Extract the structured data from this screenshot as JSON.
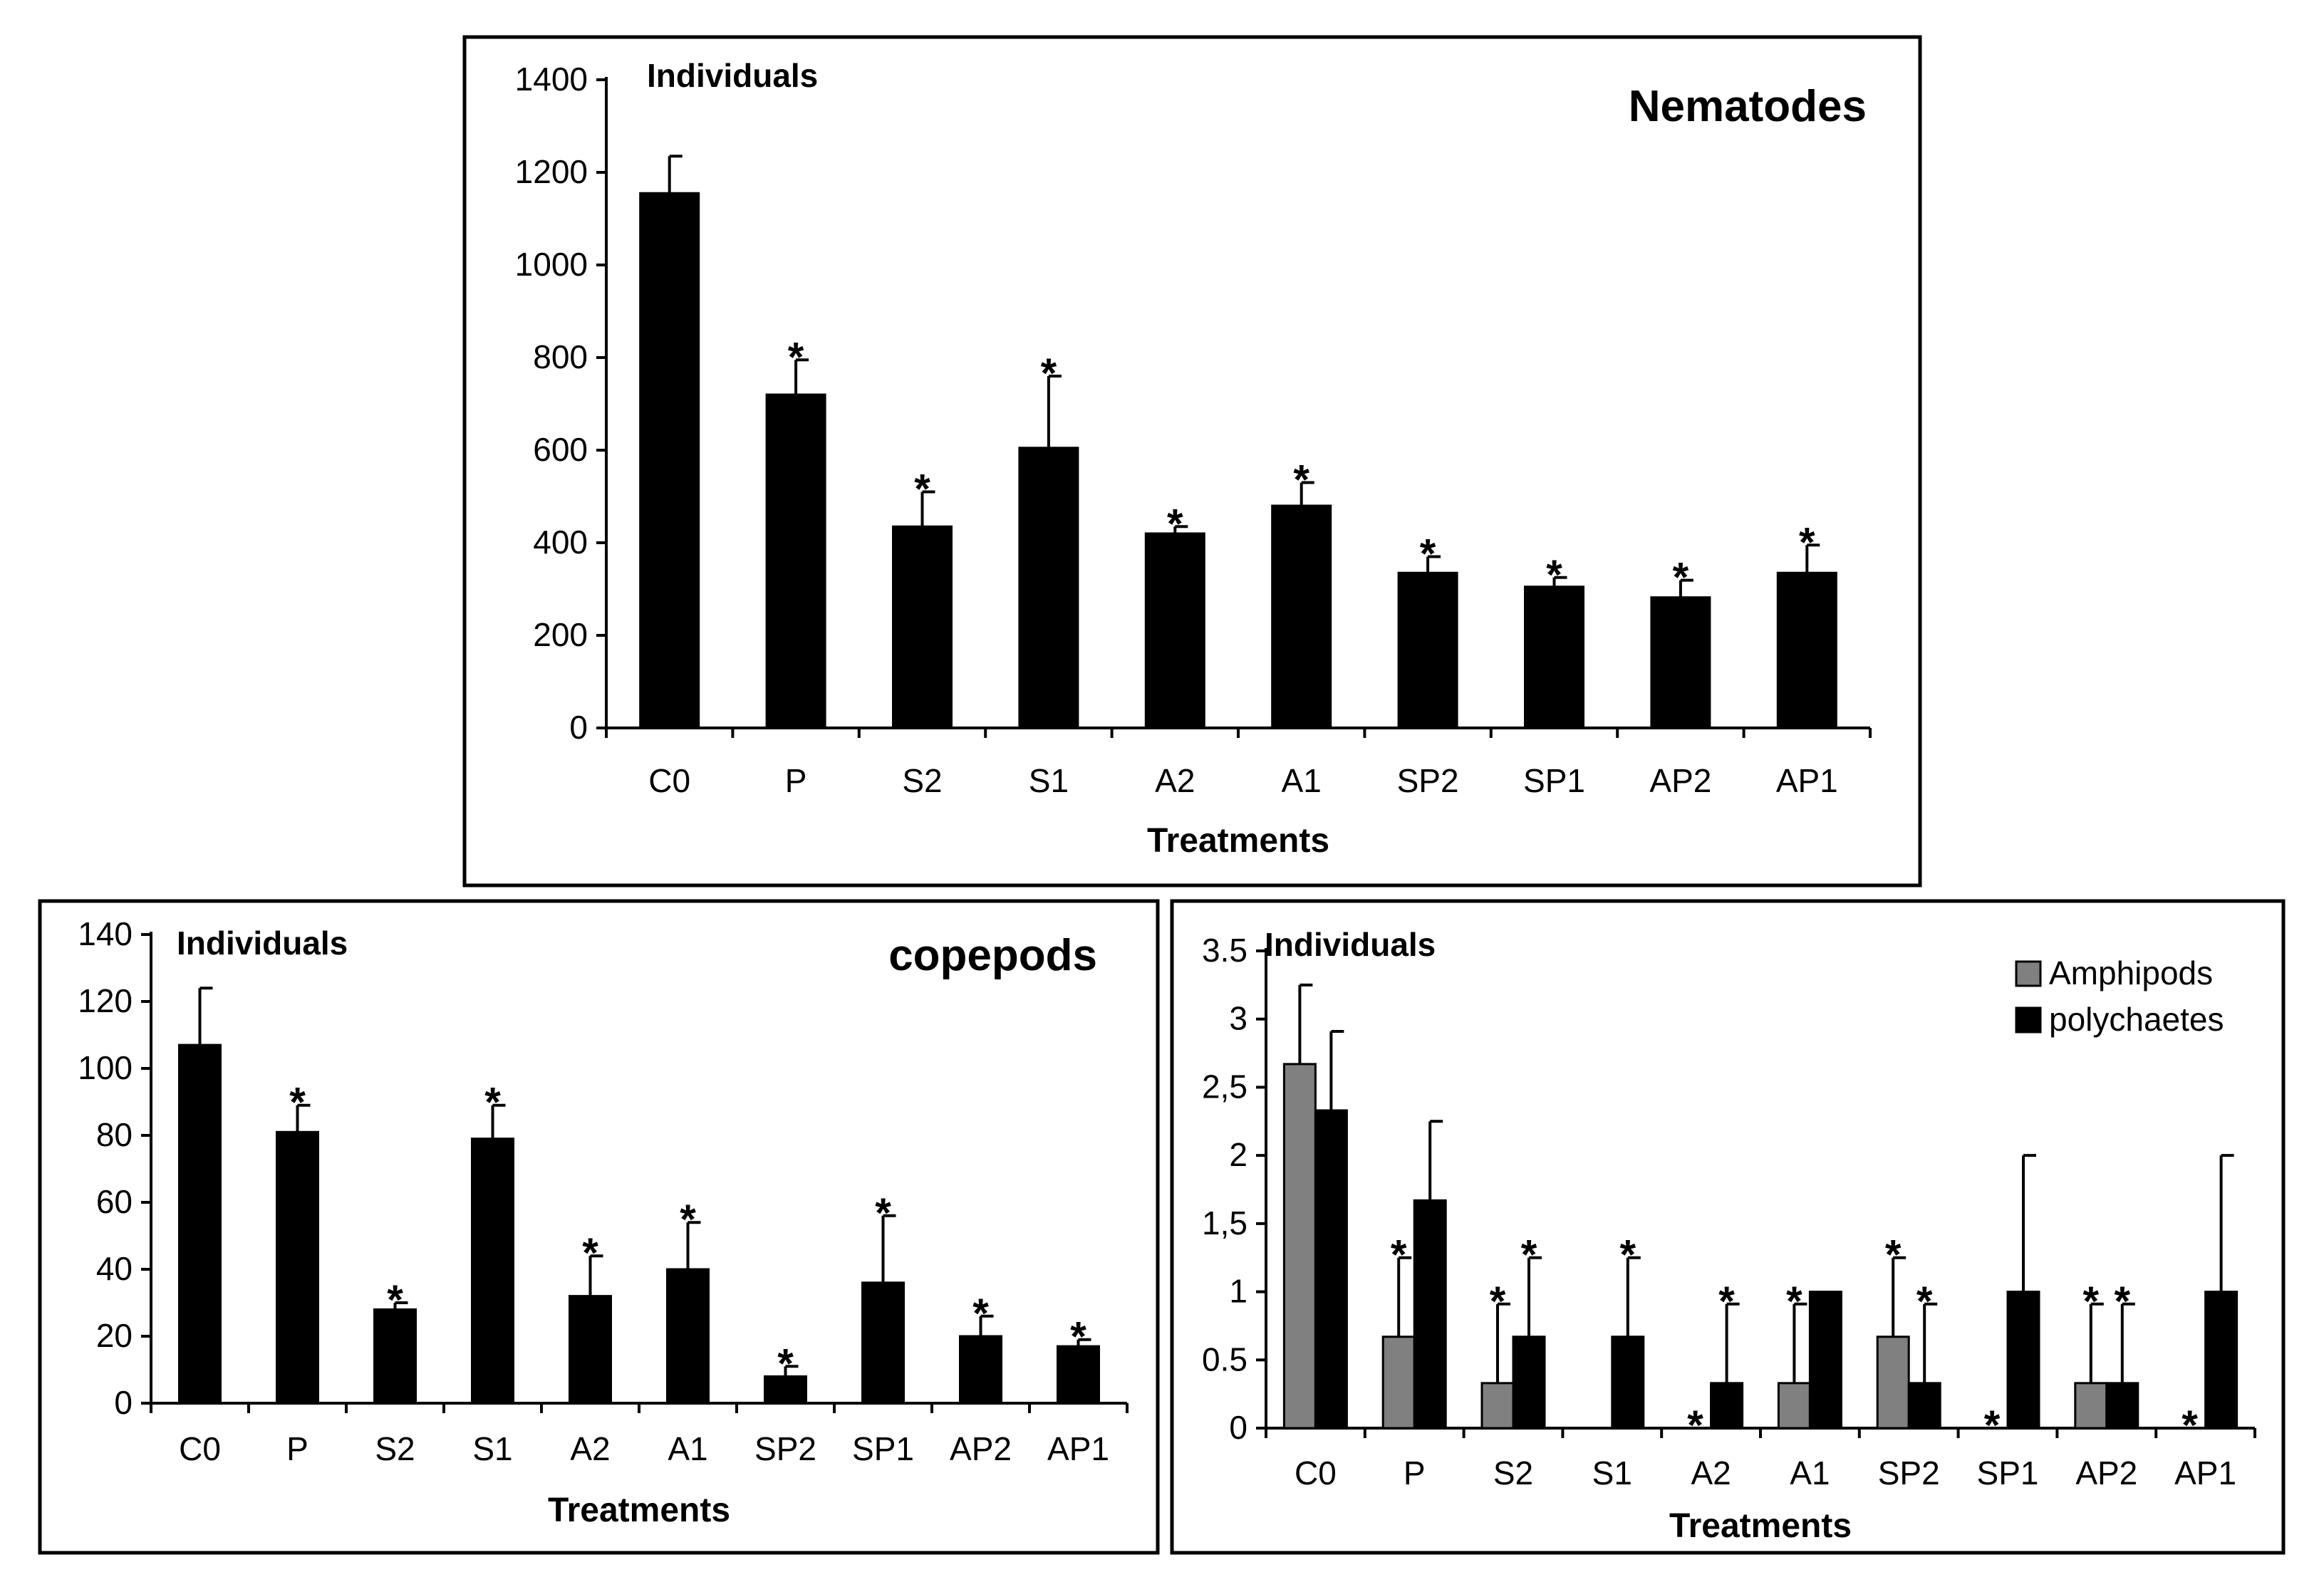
{
  "chart_data": [
    {
      "id": "nematodes",
      "type": "bar",
      "title": "Nematodes",
      "ylabel": "Individuals",
      "xlabel": "Treatments",
      "categories": [
        "C0",
        "P",
        "S2",
        "S1",
        "A2",
        "A1",
        "SP2",
        "SP1",
        "AP2",
        "AP1"
      ],
      "ylim": [
        0,
        1400
      ],
      "yticks": [
        "0",
        "200",
        "400",
        "600",
        "800",
        "1000",
        "1200",
        "1400"
      ],
      "ytick_values": [
        0,
        200,
        400,
        600,
        800,
        1000,
        1200,
        1400
      ],
      "series": [
        {
          "name": "Nematodes",
          "color": "#000000",
          "values": [
            1155,
            720,
            435,
            605,
            420,
            480,
            335,
            305,
            282,
            335
          ],
          "errors": [
            80,
            75,
            75,
            155,
            15,
            50,
            35,
            20,
            37,
            60
          ],
          "significance": [
            "",
            "*",
            "*",
            "*",
            "*",
            "*",
            "*",
            "*",
            "*",
            "*"
          ]
        }
      ]
    },
    {
      "id": "copepods",
      "type": "bar",
      "title": "copepods",
      "ylabel": "Individuals",
      "xlabel": "Treatments",
      "categories": [
        "C0",
        "P",
        "S2",
        "S1",
        "A2",
        "A1",
        "SP2",
        "SP1",
        "AP2",
        "AP1"
      ],
      "ylim": [
        0,
        140
      ],
      "yticks": [
        "0",
        "20",
        "40",
        "60",
        "80",
        "100",
        "120",
        "140"
      ],
      "ytick_values": [
        0,
        20,
        40,
        60,
        80,
        100,
        120,
        140
      ],
      "series": [
        {
          "name": "copepods",
          "color": "#000000",
          "values": [
            107,
            81,
            28,
            79,
            32,
            40,
            8,
            36,
            20,
            17
          ],
          "errors": [
            17,
            8,
            2,
            10,
            12,
            14,
            3,
            20,
            6,
            2
          ],
          "significance": [
            "",
            "*",
            "*",
            "*",
            "*",
            "*",
            "*",
            "*",
            "*",
            "*"
          ]
        }
      ]
    },
    {
      "id": "amphipods-polychaetes",
      "type": "bar",
      "title": "",
      "ylabel": "Individuals",
      "xlabel": "Treatments",
      "categories": [
        "C0",
        "P",
        "S2",
        "S1",
        "A2",
        "A1",
        "SP2",
        "SP1",
        "AP2",
        "AP1"
      ],
      "ylim": [
        0,
        3.5
      ],
      "yticks": [
        "0",
        "0.5",
        "1",
        "1,5",
        "2",
        "2,5",
        "3",
        "3.5"
      ],
      "ytick_values": [
        0,
        0.5,
        1,
        1.5,
        2,
        2.5,
        3,
        3.5
      ],
      "legend": "top-right",
      "series": [
        {
          "name": "Amphipods",
          "color": "#808080",
          "values": [
            2.67,
            0.67,
            0.33,
            0,
            0,
            0.33,
            0.67,
            0,
            0.33,
            0
          ],
          "errors": [
            0.58,
            0.58,
            0.58,
            0,
            0,
            0.58,
            0.58,
            0,
            0.58,
            0
          ],
          "significance": [
            "",
            "*",
            "*",
            "",
            "*",
            "*",
            "*",
            "*",
            "*",
            "*"
          ]
        },
        {
          "name": "polychaetes",
          "color": "#000000",
          "values": [
            2.33,
            1.67,
            0.67,
            0.67,
            0.33,
            1,
            0.33,
            1,
            0.33,
            1
          ],
          "errors": [
            0.58,
            0.58,
            0.58,
            0.58,
            0.58,
            0,
            0.58,
            1,
            0.58,
            1
          ],
          "significance": [
            "",
            "",
            "*",
            "*",
            "*",
            "",
            "*",
            "",
            "*",
            ""
          ]
        }
      ]
    }
  ]
}
